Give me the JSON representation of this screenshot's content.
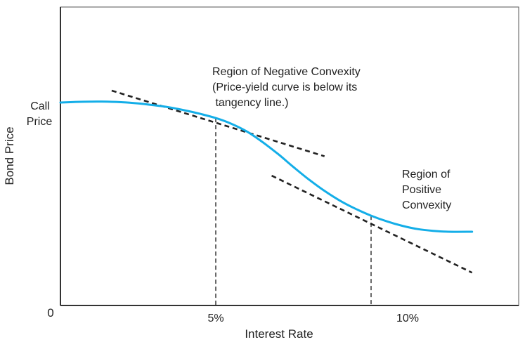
{
  "chart_data": {
    "type": "line",
    "xlabel": "Interest Rate",
    "ylabel": "Bond Price",
    "x_ticks": [
      "5%",
      "10%"
    ],
    "y_ticks": [
      "0"
    ],
    "y_marker_label": [
      "Call",
      "Price"
    ],
    "series": [
      {
        "type": "curve",
        "color": "#14aee8",
        "points": [
          [
            0,
            0.68
          ],
          [
            0.5,
            0.682
          ],
          [
            1,
            0.683
          ],
          [
            1.5,
            0.683
          ],
          [
            2,
            0.681
          ],
          [
            2.5,
            0.677
          ],
          [
            3,
            0.671
          ],
          [
            3.5,
            0.664
          ],
          [
            4,
            0.654
          ],
          [
            4.5,
            0.642
          ],
          [
            5,
            0.628
          ],
          [
            5.5,
            0.609
          ],
          [
            6,
            0.583
          ],
          [
            6.5,
            0.548
          ],
          [
            7,
            0.508
          ],
          [
            7.5,
            0.464
          ],
          [
            8,
            0.422
          ],
          [
            8.5,
            0.384
          ],
          [
            9,
            0.351
          ],
          [
            9.5,
            0.324
          ],
          [
            10,
            0.301
          ],
          [
            10.5,
            0.282
          ],
          [
            11,
            0.267
          ],
          [
            11.5,
            0.256
          ],
          [
            12,
            0.25
          ],
          [
            12.5,
            0.247
          ],
          [
            13.25,
            0.247
          ]
        ]
      }
    ],
    "tangent_lines": [
      {
        "name": "tangent at 5%",
        "from": [
          1.65,
          0.72
        ],
        "to": [
          8.5,
          0.5
        ],
        "style": "dashed"
      },
      {
        "name": "tangent at 10%",
        "from": [
          6.8,
          0.435
        ],
        "to": [
          13.25,
          0.11
        ],
        "style": "dashed"
      }
    ],
    "reference_lines": [
      {
        "x": 5,
        "y_top": 0.628,
        "style": "dashed"
      },
      {
        "x": 10,
        "y_top": 0.301,
        "style": "dashed"
      }
    ],
    "annotations": [
      {
        "lines": [
          "Region of Negative Convexity",
          "(Price-yield curve is below its",
          " tangency line.)"
        ]
      },
      {
        "lines": [
          "Region of",
          "Positive",
          "Convexity"
        ]
      }
    ]
  }
}
